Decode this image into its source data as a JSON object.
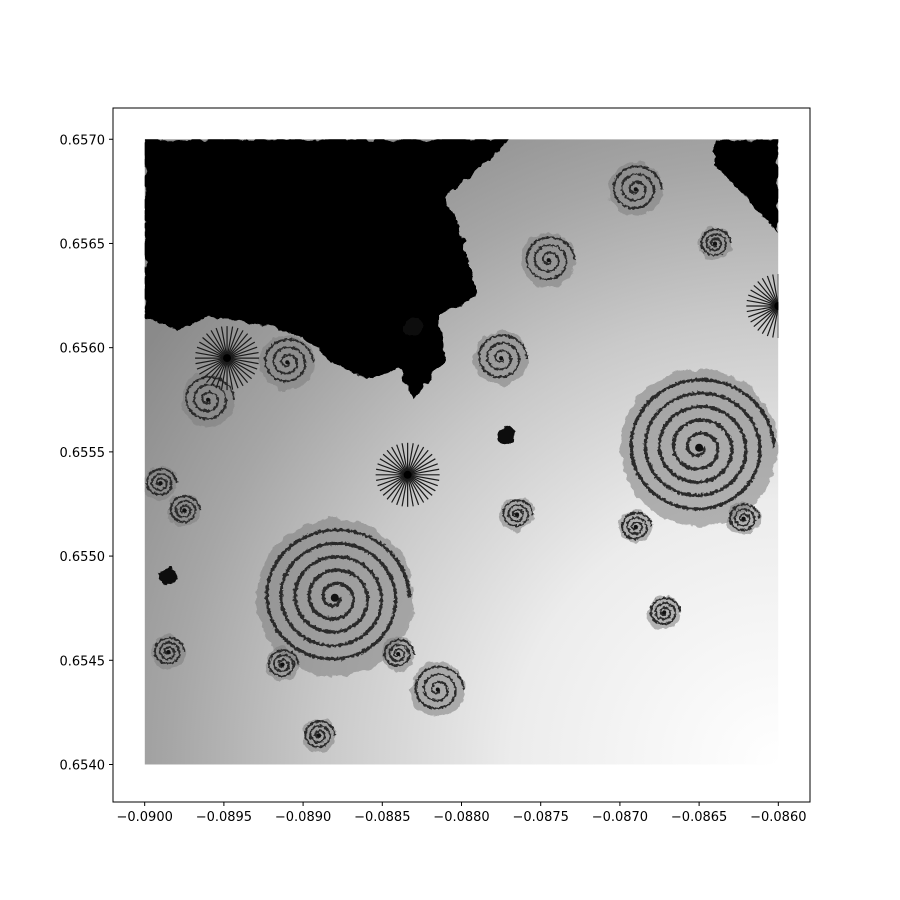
{
  "chart_data": {
    "type": "heatmap",
    "title": "",
    "xlabel": "",
    "ylabel": "",
    "colormap": "grayscale (black = in set, light = fast escape)",
    "xlim": [
      -0.0902,
      -0.0858
    ],
    "ylim": [
      0.65382,
      0.65715
    ],
    "extent": {
      "x": [
        -0.09,
        -0.086
      ],
      "y": [
        0.654,
        0.657
      ]
    },
    "xticks": [
      -0.09,
      -0.0895,
      -0.089,
      -0.0885,
      -0.088,
      -0.0875,
      -0.087,
      -0.0865,
      -0.086
    ],
    "xtick_labels": [
      "−0.0900",
      "−0.0895",
      "−0.0890",
      "−0.0885",
      "−0.0880",
      "−0.0875",
      "−0.0870",
      "−0.0865",
      "−0.0860"
    ],
    "yticks": [
      0.654,
      0.6545,
      0.655,
      0.6555,
      0.656,
      0.6565,
      0.657
    ],
    "ytick_labels": [
      "0.6540",
      "0.6545",
      "0.6550",
      "0.6555",
      "0.6560",
      "0.6565",
      "0.6570"
    ],
    "features": [
      {
        "kind": "spiral",
        "x": -0.0888,
        "y": 0.6548
      },
      {
        "kind": "spiral",
        "x": -0.0865,
        "y": 0.65552
      },
      {
        "kind": "spiral",
        "x": -0.0896,
        "y": 0.65575
      },
      {
        "kind": "spiral",
        "x": -0.08775,
        "y": 0.65595
      },
      {
        "kind": "spiral",
        "x": -0.0891,
        "y": 0.65593
      },
      {
        "kind": "spiral",
        "x": -0.0869,
        "y": 0.65676
      },
      {
        "kind": "spiral",
        "x": -0.08815,
        "y": 0.65436
      },
      {
        "kind": "spiral",
        "x": -0.08745,
        "y": 0.65642
      },
      {
        "kind": "spiral",
        "x": -0.08975,
        "y": 0.65522
      },
      {
        "kind": "spiral",
        "x": -0.08672,
        "y": 0.65473
      },
      {
        "kind": "spiral",
        "x": -0.0889,
        "y": 0.65414
      },
      {
        "kind": "spiral",
        "x": -0.08765,
        "y": 0.6552
      },
      {
        "kind": "spiral",
        "x": -0.0869,
        "y": 0.65514
      },
      {
        "kind": "spiral",
        "x": -0.08985,
        "y": 0.65454
      },
      {
        "kind": "spiral",
        "x": -0.08913,
        "y": 0.65448
      },
      {
        "kind": "spiral",
        "x": -0.0884,
        "y": 0.65453
      },
      {
        "kind": "spiral",
        "x": -0.08622,
        "y": 0.65518
      },
      {
        "kind": "spiral",
        "x": -0.0899,
        "y": 0.65535
      },
      {
        "kind": "spiral",
        "x": -0.0864,
        "y": 0.6565
      },
      {
        "kind": "starburst",
        "x": -0.08834,
        "y": 0.65539
      },
      {
        "kind": "starburst",
        "x": -0.086,
        "y": 0.6562
      },
      {
        "kind": "starburst",
        "x": -0.08948,
        "y": 0.65595
      },
      {
        "kind": "blob",
        "x": -0.08772,
        "y": 0.65558
      },
      {
        "kind": "blob",
        "x": -0.08985,
        "y": 0.6549
      },
      {
        "kind": "blob",
        "x": -0.0883,
        "y": 0.6561
      }
    ]
  }
}
